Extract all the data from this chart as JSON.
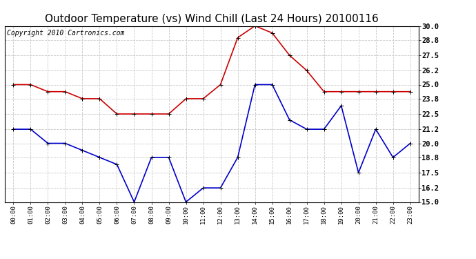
{
  "title": "Outdoor Temperature (vs) Wind Chill (Last 24 Hours) 20100116",
  "copyright": "Copyright 2010 Cartronics.com",
  "hours": [
    "00:00",
    "01:00",
    "02:00",
    "03:00",
    "04:00",
    "05:00",
    "06:00",
    "07:00",
    "08:00",
    "09:00",
    "10:00",
    "11:00",
    "12:00",
    "13:00",
    "14:00",
    "15:00",
    "16:00",
    "17:00",
    "18:00",
    "19:00",
    "20:00",
    "21:00",
    "22:00",
    "23:00"
  ],
  "temp": [
    25.0,
    25.0,
    24.4,
    24.4,
    23.8,
    23.8,
    22.5,
    22.5,
    22.5,
    22.5,
    23.8,
    23.8,
    25.0,
    29.0,
    30.0,
    29.4,
    27.5,
    26.2,
    24.4,
    24.4,
    24.4,
    24.4,
    24.4,
    24.4
  ],
  "windchill": [
    21.2,
    21.2,
    20.0,
    20.0,
    19.4,
    18.8,
    18.2,
    15.0,
    18.8,
    18.8,
    15.0,
    16.2,
    16.2,
    18.8,
    25.0,
    25.0,
    22.0,
    21.2,
    21.2,
    23.2,
    17.5,
    21.2,
    18.8,
    20.0
  ],
  "temp_color": "#cc0000",
  "windchill_color": "#0000cc",
  "background_color": "#ffffff",
  "plot_bg_color": "#ffffff",
  "grid_color": "#c8c8c8",
  "ylim": [
    15.0,
    30.0
  ],
  "yticks": [
    15.0,
    16.2,
    17.5,
    18.8,
    20.0,
    21.2,
    22.5,
    23.8,
    25.0,
    26.2,
    27.5,
    28.8,
    30.0
  ],
  "title_fontsize": 11,
  "copyright_fontsize": 7,
  "marker": "+",
  "marker_size": 5,
  "line_width": 1.2
}
